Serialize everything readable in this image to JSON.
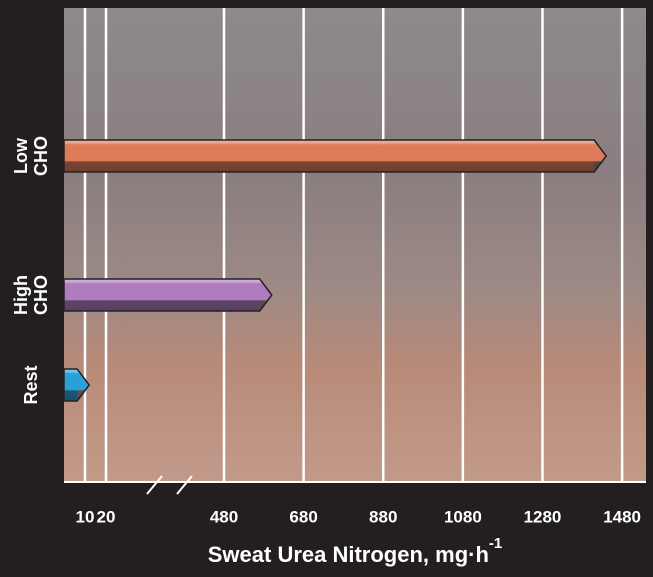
{
  "chart_data": {
    "type": "bar",
    "orientation": "horizontal",
    "x_label": "Sweat Urea Nitrogen, mg·h",
    "x_label_superscript": "-1",
    "categories": [
      "Low CHO",
      "High CHO",
      "Rest"
    ],
    "values": [
      1440,
      600,
      12
    ],
    "colors": [
      "#e07b5a",
      "#b07cc0",
      "#2aa0d8"
    ],
    "xlim": [
      0,
      1540
    ],
    "axis_break": [
      20,
      480
    ],
    "xticks": [
      10,
      20,
      480,
      680,
      880,
      1080,
      1280,
      1480
    ],
    "grid": true
  }
}
